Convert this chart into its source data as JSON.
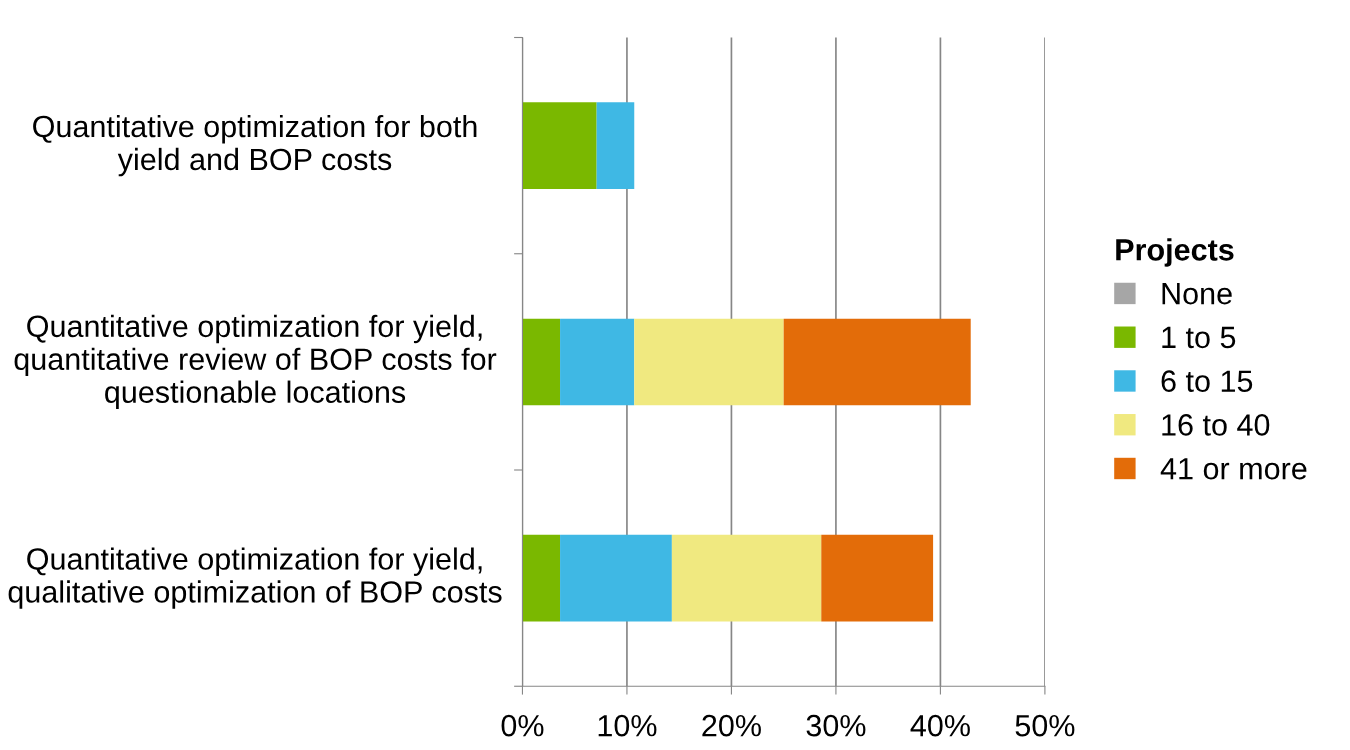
{
  "chart_data": {
    "type": "bar",
    "orientation": "horizontal",
    "stacked": true,
    "categories": [
      "Quantitative optimization for both yield and BOP costs",
      "Quantitative optimization for yield, quantitative review of BOP costs for questionable locations",
      "Quantitative optimization for yield, qualitative optimization of BOP costs"
    ],
    "series": [
      {
        "name": "None",
        "color": "#a6a6a6",
        "values": [
          0,
          0,
          0
        ]
      },
      {
        "name": "1 to 5",
        "color": "#7ab800",
        "values": [
          7.1,
          3.6,
          3.6
        ]
      },
      {
        "name": "6 to 15",
        "color": "#3fb8e4",
        "values": [
          3.6,
          7.1,
          10.7
        ]
      },
      {
        "name": "16 to 40",
        "color": "#f0e980",
        "values": [
          0,
          14.3,
          14.3
        ]
      },
      {
        "name": "41 or more",
        "color": "#e36c09",
        "values": [
          0,
          17.9,
          10.7
        ]
      }
    ],
    "xlim": [
      0,
      50
    ],
    "xticks": [
      {
        "value": 0,
        "label": "0%"
      },
      {
        "value": 10,
        "label": "10%"
      },
      {
        "value": 20,
        "label": "20%"
      },
      {
        "value": 30,
        "label": "30%"
      },
      {
        "value": 40,
        "label": "40%"
      },
      {
        "value": 50,
        "label": "50%"
      }
    ],
    "grid": "x",
    "legend": "right",
    "legend_title": "Projects"
  }
}
